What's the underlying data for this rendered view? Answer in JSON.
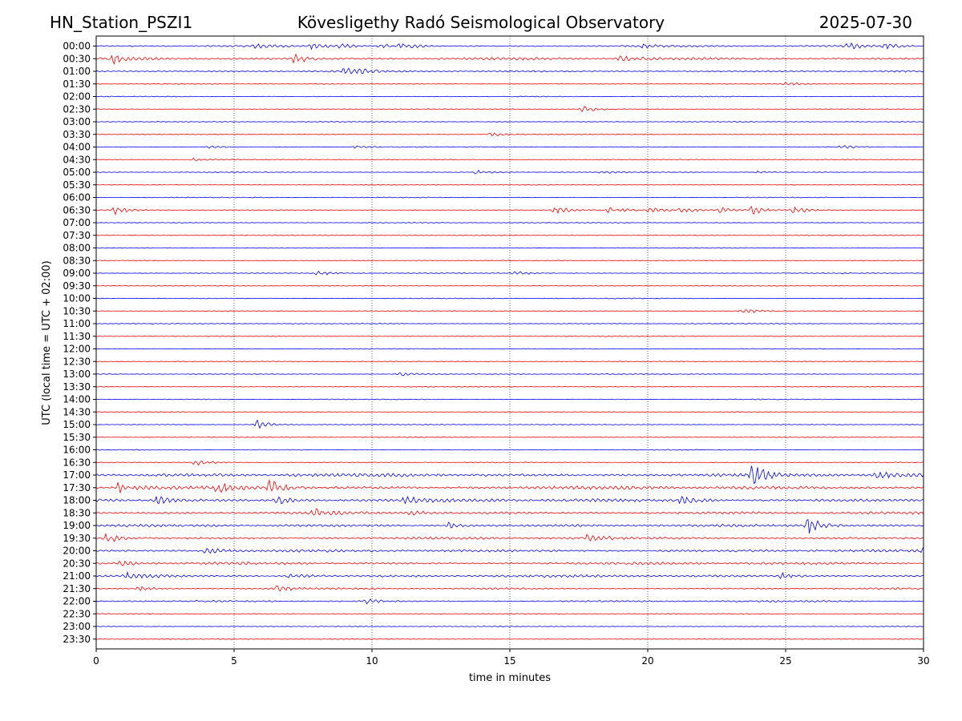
{
  "header": {
    "station": "HN_Station_PSZI1",
    "title": "Kövesligethy Radó Seismological Observatory",
    "date": "2025-07-30"
  },
  "chart_data": {
    "type": "line",
    "title": "Kövesligethy Radó Seismological Observatory",
    "xlabel": "time in minutes",
    "ylabel": "UTC (local time = UTC + 02:00)",
    "xlim": [
      0,
      30
    ],
    "x_ticks": [
      "0",
      "5",
      "10",
      "15",
      "20",
      "25",
      "30"
    ],
    "grid": "vertical dotted lines at 5-minute intervals",
    "colors": {
      "even_rows": "#0000ff",
      "odd_rows": "#ff0000"
    },
    "rows": [
      "00:00",
      "00:30",
      "01:00",
      "01:30",
      "02:00",
      "02:30",
      "03:00",
      "03:30",
      "04:00",
      "04:30",
      "05:00",
      "05:30",
      "06:00",
      "06:30",
      "07:00",
      "07:30",
      "08:00",
      "08:30",
      "09:00",
      "09:30",
      "10:00",
      "10:30",
      "11:00",
      "11:30",
      "12:00",
      "12:30",
      "13:00",
      "13:30",
      "14:00",
      "14:30",
      "15:00",
      "15:30",
      "16:00",
      "16:30",
      "17:00",
      "17:30",
      "18:00",
      "18:30",
      "19:00",
      "19:30",
      "20:00",
      "20:30",
      "21:00",
      "21:30",
      "22:00",
      "22:30",
      "23:00",
      "23:30"
    ],
    "trace_level": [
      2,
      3,
      2,
      1,
      1,
      1,
      1,
      1,
      1,
      1,
      1,
      1,
      1,
      1,
      1,
      1,
      1,
      1,
      1,
      1,
      1,
      1,
      1,
      1,
      1,
      1,
      1,
      1,
      1,
      1,
      1,
      1,
      1,
      1,
      4,
      4,
      4,
      3,
      3,
      3,
      3,
      3,
      3,
      2,
      2,
      1,
      1,
      1
    ],
    "events": [
      {
        "row": 0,
        "x": 5.8,
        "amp": 3
      },
      {
        "row": 0,
        "x": 7.8,
        "amp": 4
      },
      {
        "row": 0,
        "x": 8.8,
        "amp": 3
      },
      {
        "row": 0,
        "x": 10.3,
        "amp": 3
      },
      {
        "row": 0,
        "x": 11.0,
        "amp": 5
      },
      {
        "row": 0,
        "x": 19.8,
        "amp": 3
      },
      {
        "row": 0,
        "x": 27.2,
        "amp": 5
      },
      {
        "row": 0,
        "x": 28.6,
        "amp": 4
      },
      {
        "row": 1,
        "x": 0.6,
        "amp": 6
      },
      {
        "row": 1,
        "x": 7.2,
        "amp": 6
      },
      {
        "row": 1,
        "x": 19.0,
        "amp": 3
      },
      {
        "row": 2,
        "x": 9.0,
        "amp": 4
      },
      {
        "row": 2,
        "x": 9.6,
        "amp": 3
      },
      {
        "row": 3,
        "x": 25.0,
        "amp": 2
      },
      {
        "row": 5,
        "x": 17.6,
        "amp": 5
      },
      {
        "row": 7,
        "x": 14.3,
        "amp": 3
      },
      {
        "row": 8,
        "x": 4.1,
        "amp": 2
      },
      {
        "row": 8,
        "x": 9.4,
        "amp": 2
      },
      {
        "row": 8,
        "x": 27.0,
        "amp": 2
      },
      {
        "row": 9,
        "x": 3.5,
        "amp": 2
      },
      {
        "row": 10,
        "x": 13.8,
        "amp": 3
      },
      {
        "row": 10,
        "x": 18.3,
        "amp": 2
      },
      {
        "row": 10,
        "x": 24.0,
        "amp": 2
      },
      {
        "row": 13,
        "x": 0.7,
        "amp": 6
      },
      {
        "row": 13,
        "x": 16.6,
        "amp": 7
      },
      {
        "row": 13,
        "x": 18.6,
        "amp": 5
      },
      {
        "row": 13,
        "x": 20.1,
        "amp": 5
      },
      {
        "row": 13,
        "x": 21.2,
        "amp": 4
      },
      {
        "row": 13,
        "x": 22.6,
        "amp": 4
      },
      {
        "row": 13,
        "x": 23.8,
        "amp": 7
      },
      {
        "row": 13,
        "x": 25.3,
        "amp": 5
      },
      {
        "row": 18,
        "x": 8.0,
        "amp": 4
      },
      {
        "row": 18,
        "x": 15.1,
        "amp": 4
      },
      {
        "row": 21,
        "x": 23.4,
        "amp": 4
      },
      {
        "row": 26,
        "x": 11.0,
        "amp": 3
      },
      {
        "row": 30,
        "x": 5.8,
        "amp": 6
      },
      {
        "row": 33,
        "x": 3.6,
        "amp": 5
      },
      {
        "row": 34,
        "x": 23.8,
        "amp": 15
      },
      {
        "row": 34,
        "x": 28.3,
        "amp": 4
      },
      {
        "row": 35,
        "x": 0.8,
        "amp": 7
      },
      {
        "row": 35,
        "x": 4.4,
        "amp": 8
      },
      {
        "row": 35,
        "x": 6.3,
        "amp": 12
      },
      {
        "row": 36,
        "x": 2.2,
        "amp": 6
      },
      {
        "row": 36,
        "x": 6.5,
        "amp": 6
      },
      {
        "row": 36,
        "x": 11.2,
        "amp": 4
      },
      {
        "row": 36,
        "x": 21.2,
        "amp": 7
      },
      {
        "row": 37,
        "x": 7.9,
        "amp": 5
      },
      {
        "row": 37,
        "x": 11.4,
        "amp": 4
      },
      {
        "row": 38,
        "x": 12.8,
        "amp": 4
      },
      {
        "row": 38,
        "x": 25.8,
        "amp": 13
      },
      {
        "row": 39,
        "x": 0.4,
        "amp": 6
      },
      {
        "row": 39,
        "x": 17.8,
        "amp": 5
      },
      {
        "row": 40,
        "x": 4.0,
        "amp": 5
      },
      {
        "row": 40,
        "x": 29.9,
        "amp": 5
      },
      {
        "row": 41,
        "x": 0.9,
        "amp": 4
      },
      {
        "row": 42,
        "x": 1.1,
        "amp": 5
      },
      {
        "row": 42,
        "x": 7.0,
        "amp": 5
      },
      {
        "row": 42,
        "x": 24.8,
        "amp": 4
      },
      {
        "row": 43,
        "x": 1.5,
        "amp": 4
      },
      {
        "row": 43,
        "x": 6.5,
        "amp": 4
      },
      {
        "row": 44,
        "x": 9.8,
        "amp": 3
      }
    ]
  }
}
